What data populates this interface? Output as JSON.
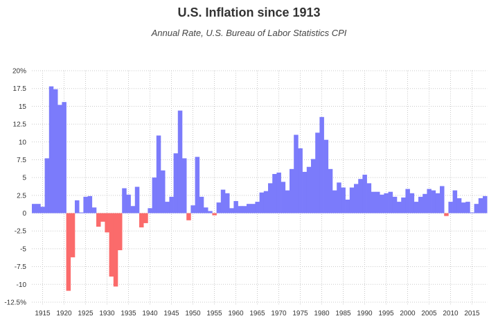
{
  "chart_data": {
    "type": "bar",
    "title": "U.S. Inflation since 1913",
    "subtitle": "Annual Rate, U.S. Bureau of Labor Statistics CPI",
    "xlabel": "",
    "ylabel": "",
    "x_start": 1913,
    "years": [
      1913,
      1914,
      1915,
      1916,
      1917,
      1918,
      1919,
      1920,
      1921,
      1922,
      1923,
      1924,
      1925,
      1926,
      1927,
      1928,
      1929,
      1930,
      1931,
      1932,
      1933,
      1934,
      1935,
      1936,
      1937,
      1938,
      1939,
      1940,
      1941,
      1942,
      1943,
      1944,
      1945,
      1946,
      1947,
      1948,
      1949,
      1950,
      1951,
      1952,
      1953,
      1954,
      1955,
      1956,
      1957,
      1958,
      1959,
      1960,
      1961,
      1962,
      1963,
      1964,
      1965,
      1966,
      1967,
      1968,
      1969,
      1970,
      1971,
      1972,
      1973,
      1974,
      1975,
      1976,
      1977,
      1978,
      1979,
      1980,
      1981,
      1982,
      1983,
      1984,
      1985,
      1986,
      1987,
      1988,
      1989,
      1990,
      1991,
      1992,
      1993,
      1994,
      1995,
      1996,
      1997,
      1998,
      1999,
      2000,
      2001,
      2002,
      2003,
      2004,
      2005,
      2006,
      2007,
      2008,
      2009,
      2010,
      2011,
      2012,
      2013,
      2014,
      2015,
      2016,
      2017,
      2018
    ],
    "values": [
      1.3,
      1.3,
      0.9,
      7.7,
      17.8,
      17.4,
      15.2,
      15.6,
      -10.9,
      -6.2,
      1.8,
      0.1,
      2.3,
      2.4,
      0.8,
      -1.9,
      -1.2,
      -2.7,
      -8.9,
      -10.3,
      -5.2,
      3.5,
      2.6,
      1.0,
      3.7,
      -2.0,
      -1.4,
      0.7,
      5.0,
      10.9,
      6.0,
      1.6,
      2.3,
      8.4,
      14.4,
      7.7,
      -1.0,
      1.1,
      7.9,
      2.3,
      0.8,
      0.3,
      -0.3,
      1.5,
      3.3,
      2.8,
      0.7,
      1.7,
      1.0,
      1.0,
      1.3,
      1.3,
      1.6,
      2.9,
      3.1,
      4.2,
      5.5,
      5.7,
      4.4,
      3.2,
      6.2,
      11.0,
      9.1,
      5.8,
      6.5,
      7.6,
      11.3,
      13.5,
      10.3,
      6.2,
      3.2,
      4.3,
      3.6,
      1.9,
      3.6,
      4.1,
      4.8,
      5.4,
      4.2,
      3.0,
      3.0,
      2.6,
      2.8,
      3.0,
      2.3,
      1.6,
      2.2,
      3.4,
      2.8,
      1.6,
      2.3,
      2.7,
      3.4,
      3.2,
      2.8,
      3.8,
      -0.4,
      1.6,
      3.2,
      2.1,
      1.5,
      1.6,
      0.1,
      1.3,
      2.1,
      2.4
    ],
    "xticks": [
      "1915",
      "1920",
      "1925",
      "1930",
      "1935",
      "1940",
      "1945",
      "1950",
      "1955",
      "1960",
      "1965",
      "1970",
      "1975",
      "1980",
      "1985",
      "1990",
      "1995",
      "2000",
      "2005",
      "2010",
      "2015"
    ],
    "yticks": [
      "20%",
      "17.5",
      "15",
      "12.5",
      "10",
      "7.5",
      "5",
      "2.5",
      "0",
      "-2.5",
      "-5",
      "-7.5",
      "-10",
      "-12.5%"
    ],
    "ylim": [
      -12.5,
      20
    ],
    "grid": true,
    "colors": {
      "positive": "#7b7bfb",
      "negative": "#fb6b6b",
      "grid": "#c8c8c8"
    }
  }
}
